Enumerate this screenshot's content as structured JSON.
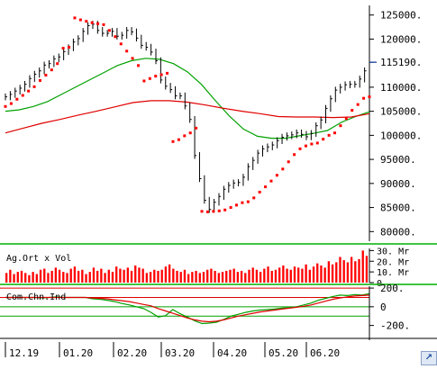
{
  "chart_data": [
    {
      "type": "line",
      "panel": "price",
      "y_ticks": [
        "125000.",
        "120000.",
        "115190.",
        "110000.",
        "105000.",
        "100000.",
        "95000.",
        "90000.",
        "85000.",
        "80000."
      ],
      "last_price_label": "115190.",
      "ylim": [
        78000,
        127000
      ],
      "x_tick_labels": [
        "12.19",
        "01.20",
        "02.20",
        "03.20",
        "04.20",
        "05.20",
        "06.20"
      ],
      "colors": {
        "price_bars": "#000000",
        "sar_dots": "#ff0000",
        "ma_short": "#e00000",
        "ma_mid": "#00a000",
        "ma_long": "#e00000",
        "last_price_line": "#1a3fa0",
        "divider": "#00b000"
      },
      "series": [
        {
          "name": "",
          "kind": "price_bars",
          "values": [
            108000,
            108500,
            109200,
            109800,
            110600,
            111800,
            112700,
            113400,
            114600,
            114900,
            115900,
            116300,
            117400,
            118200,
            119400,
            120100,
            121600,
            122800,
            123100,
            121800,
            121200,
            121200,
            121600,
            120600,
            120800,
            121800,
            121500,
            120200,
            118700,
            118300,
            117300,
            115500,
            111500,
            110200,
            109500,
            108200,
            108200,
            106100,
            103300,
            95800,
            91000,
            86500,
            84600,
            86100,
            87300,
            88800,
            89600,
            90100,
            90200,
            91300,
            93500,
            94800,
            96300,
            97200,
            97600,
            98000,
            98900,
            99600,
            99900,
            100100,
            100500,
            100200,
            99700,
            100400,
            102000,
            103200,
            105600,
            107600,
            109400,
            110000,
            110500,
            110600,
            110600,
            111700,
            113400,
            115200
          ]
        },
        {
          "name": "",
          "kind": "sar_dots",
          "values": [
            106000,
            106600,
            107500,
            108300,
            109200,
            110100,
            111400,
            112500,
            113600,
            114900,
            118100,
            118300,
            124400,
            124000,
            123700,
            123400,
            123200,
            123000,
            121800,
            120500,
            119000,
            117500,
            116000,
            114500,
            111300,
            111800,
            112300,
            112600,
            112900,
            98700,
            99100,
            99900,
            100500,
            101500,
            84200,
            84100,
            84200,
            84300,
            84500,
            85000,
            85500,
            86000,
            86200,
            87000,
            88200,
            89300,
            90500,
            91700,
            93000,
            94500,
            96000,
            97200,
            97800,
            98200,
            98400,
            99200,
            100000,
            100500,
            102000,
            103500,
            105200,
            106400,
            107700,
            108000
          ]
        },
        {
          "name": "",
          "kind": "moving_average",
          "values": [
            105000,
            105300,
            106000,
            107000,
            108500,
            110000,
            111500,
            113000,
            114500,
            115500,
            116000,
            115800,
            114900,
            113200,
            110600,
            107200,
            104000,
            101300,
            99800,
            99400,
            99400,
            99900,
            100400,
            101000,
            102700,
            103900,
            104900
          ]
        },
        {
          "name": "",
          "kind": "moving_average",
          "values": [
            100500,
            101500,
            102500,
            103300,
            104200,
            105000,
            105900,
            106800,
            107200,
            107200,
            106900,
            106300,
            105600,
            105000,
            104500,
            103900,
            103800,
            103800,
            103700,
            103800,
            104500
          ]
        }
      ]
    },
    {
      "type": "bar",
      "panel": "volume",
      "label": "Ag.Ort x Vol",
      "y_ticks": [
        "30. Mr",
        "20. Mr",
        "10. Mr",
        "0"
      ],
      "ylim": [
        0,
        32
      ],
      "colors": {
        "bars": "#ff0000"
      },
      "values": [
        9,
        12,
        8,
        10,
        11,
        9,
        7,
        10,
        8,
        12,
        13,
        9,
        11,
        14,
        12,
        10,
        9,
        13,
        15,
        11,
        12,
        8,
        10,
        14,
        11,
        13,
        9,
        12,
        10,
        15,
        13,
        12,
        14,
        11,
        16,
        14,
        13,
        9,
        10,
        12,
        11,
        12,
        15,
        17,
        13,
        11,
        10,
        12,
        8,
        10,
        11,
        9,
        10,
        12,
        13,
        11,
        9,
        10,
        11,
        12,
        13,
        10,
        11,
        9,
        12,
        14,
        12,
        10,
        13,
        15,
        11,
        12,
        14,
        16,
        13,
        12,
        15,
        14,
        13,
        17,
        12,
        15,
        18,
        16,
        14,
        20,
        17,
        19,
        24,
        21,
        19,
        24,
        20,
        22,
        30,
        25
      ]
    },
    {
      "type": "line",
      "panel": "oscillator",
      "label": "Com.Chn.Ind",
      "y_ticks": [
        "200.",
        "0",
        "-200."
      ],
      "ylim": [
        -300,
        220
      ],
      "colors": {
        "osc": "#00a000",
        "signal": "#e00000",
        "levels": "#e00000",
        "zero_and_low": "#00a000"
      },
      "series": [
        {
          "name": "",
          "values": [
            100,
            100,
            100,
            100,
            100,
            95,
            100,
            105,
            100,
            100,
            100,
            100,
            85,
            80,
            70,
            55,
            35,
            20,
            0,
            -20,
            -60,
            -110,
            -95,
            -30,
            -75,
            -110,
            -150,
            -180,
            -175,
            -165,
            -135,
            -100,
            -80,
            -60,
            -45,
            -35,
            -30,
            -25,
            -15,
            -10,
            0,
            20,
            40,
            70,
            90,
            110,
            125,
            120,
            130,
            125,
            140
          ]
        },
        {
          "name": "",
          "values": [
            100,
            100,
            100,
            100,
            100,
            100,
            100,
            100,
            100,
            100,
            100,
            100,
            95,
            90,
            85,
            75,
            65,
            55,
            40,
            25,
            10,
            -20,
            -45,
            -70,
            -95,
            -120,
            -140,
            -155,
            -160,
            -155,
            -140,
            -120,
            -100,
            -85,
            -70,
            -55,
            -45,
            -35,
            -25,
            -15,
            -5,
            5,
            20,
            40,
            60,
            80,
            95,
            105,
            115,
            120,
            125
          ]
        }
      ]
    }
  ]
}
